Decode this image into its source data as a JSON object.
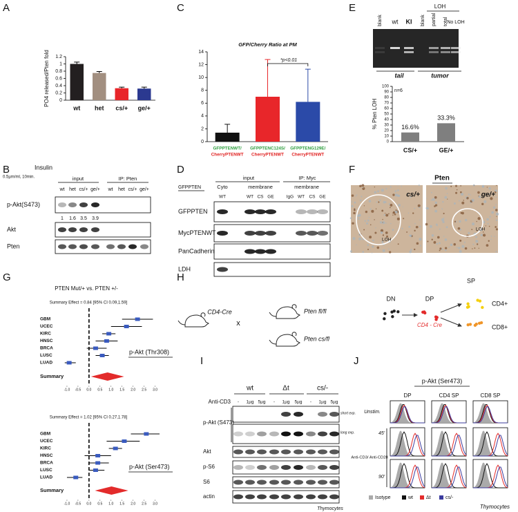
{
  "panel_labels": [
    "A",
    "B",
    "C",
    "D",
    "E",
    "F",
    "G",
    "H",
    "I",
    "J"
  ],
  "chart_data": [
    {
      "type": "bar",
      "ylabel": "PO4 released/Pten fold",
      "categories": [
        "wt",
        "het",
        "cs/+",
        "ge/+"
      ],
      "values": [
        1,
        0.75,
        0.33,
        0.32
      ],
      "errors": [
        0.05,
        0.04,
        0.03,
        0.04
      ],
      "colors": [
        "#231f20",
        "#a28f80",
        "#e8262a",
        "#2b3990"
      ],
      "ylim": [
        0,
        1.2
      ],
      "yticks": [
        0,
        0.2,
        0.4,
        0.6,
        0.8,
        1,
        1.2
      ]
    },
    {
      "type": "bar",
      "title": "GFP/Cherry Ratio at PM",
      "annotation": "*p<0.01",
      "categories": [
        "GFPPTENWT/",
        "GFPPTENC124S/",
        "GFPPTENG129E/"
      ],
      "category_sublabels": [
        "CherryPTENWT",
        "CherryPTENWT",
        "CherryPTENWT"
      ],
      "label_colors": [
        "#2e9e3e",
        "#e0201f"
      ],
      "values": [
        1.4,
        7,
        6.2
      ],
      "errors": [
        1.3,
        5.8,
        5.1
      ],
      "colors": [
        "#111111",
        "#e8262a",
        "#2b4aa8"
      ],
      "ylim": [
        0,
        14
      ],
      "yticks": [
        0,
        2,
        4,
        6,
        8,
        10,
        12,
        14
      ]
    },
    {
      "type": "bar",
      "ylabel": "% Pten LOH",
      "annotation": "n=6",
      "categories": [
        "CS/+",
        "GE/+"
      ],
      "values": [
        16.6,
        33.3
      ],
      "value_labels": [
        "16.6%",
        "33.3%"
      ],
      "colors": [
        "#7f7f7f",
        "#7f7f7f"
      ],
      "ylim": [
        0,
        100
      ],
      "yticks": [
        0,
        10,
        20,
        30,
        40,
        50,
        60,
        70,
        80,
        90,
        100
      ]
    },
    {
      "type": "forest",
      "subtitle": "Summary Effect = 0.84 [95% CI 0.09,1.59]",
      "label": "p-Akt (Thr308)",
      "categories": [
        "GBM",
        "UCEC",
        "KIRC",
        "HNSC",
        "BRCA",
        "LUSC",
        "LUAD"
      ],
      "values": [
        2.2,
        1.7,
        0.9,
        0.8,
        0.3,
        0.6,
        -0.9
      ],
      "lower": [
        1.5,
        1.0,
        0.6,
        0.3,
        -0.1,
        0.3,
        -1.1
      ],
      "upper": [
        2.9,
        2.4,
        1.2,
        1.3,
        0.8,
        0.9,
        -0.6
      ],
      "summary": {
        "label": "Summary",
        "value": 0.84,
        "lower": 0.09,
        "upper": 1.59
      },
      "color": "#3a5bbf",
      "summary_color": "#e32b2b",
      "xlim": [
        -1.5,
        3.2
      ],
      "xticks": [
        {
          "value": -1,
          "label": "-1.0"
        },
        -0.5,
        {
          "value": 0,
          "label": "0.0"
        },
        0.5,
        {
          "value": 1,
          "label": "1.0"
        },
        1.5,
        {
          "value": 2,
          "label": "2.0"
        },
        2.5,
        {
          "value": 3,
          "label": "3.0"
        }
      ]
    },
    {
      "type": "forest",
      "subtitle": "Summary Effect = 1.02 [95% CI 0.27,1.78]",
      "label": "p-Akt (Ser473)",
      "categories": [
        "GBM",
        "UCEC",
        "KIRC",
        "HNSC",
        "BRCA",
        "LUSC",
        "LUAD"
      ],
      "values": [
        2.6,
        1.6,
        1.2,
        0.4,
        0.4,
        0.3,
        -0.6
      ],
      "lower": [
        1.9,
        0.8,
        0.9,
        -0.2,
        0.0,
        0.0,
        -1.0
      ],
      "upper": [
        3.2,
        2.3,
        1.5,
        1.0,
        0.9,
        0.7,
        -0.3
      ],
      "summary": {
        "label": "Summary",
        "value": 1.02,
        "lower": 0.27,
        "upper": 1.78
      },
      "color": "#3a5bbf",
      "summary_color": "#e32b2b",
      "xlim": [
        -1.5,
        3.2
      ],
      "xticks": [
        {
          "value": -1,
          "label": "-1.0"
        },
        -0.5,
        {
          "value": 0,
          "label": "0.0"
        },
        0.5,
        {
          "value": 1,
          "label": "1.0"
        },
        1.5,
        {
          "value": 2,
          "label": "2.0"
        },
        2.5,
        {
          "value": 3,
          "label": "3.0"
        }
      ]
    }
  ],
  "panel_B": {
    "treatment": "Insulin",
    "dose": "0.5µm/ml, 10min.",
    "groups": [
      "input",
      "IP: Pten"
    ],
    "lanes": [
      "wt",
      "het",
      "cs/+",
      "ge/+",
      "wt",
      "het",
      "cs/+",
      "ge/+"
    ],
    "rows": [
      "p-Akt(S473)",
      "Akt",
      "Pten"
    ],
    "quantification": [
      1,
      1.6,
      3.5,
      3.9
    ]
  },
  "panel_D": {
    "construct": "GFPPTEN",
    "groups": [
      "input",
      "IP: Myc"
    ],
    "fractions": [
      "Cyto",
      "membrane",
      "membrane"
    ],
    "lanes": [
      "WT",
      "WT",
      "CS",
      "GE",
      "IgG",
      "WT",
      "CS",
      "GE"
    ],
    "rows": [
      "GFPPTEN",
      "MycPTENWT",
      "PanCadherin",
      "LDH"
    ]
  },
  "panel_E": {
    "lanes": [
      "blank",
      "wt",
      "KI",
      "blank",
      "partial",
      "total",
      "No LOH"
    ],
    "group": "LOH",
    "sources": [
      "tail",
      "tumor"
    ]
  },
  "panel_F": {
    "title": "Pten",
    "images": [
      {
        "genotype": "cs/+",
        "region": "LOH"
      },
      {
        "genotype": "ge/+",
        "region": "LOH"
      }
    ]
  },
  "panel_G": {
    "title": "PTEN Mut/+ vs. PTEN +/-"
  },
  "panel_H": {
    "driver": "CD4-Cre",
    "cross": "x",
    "alleles": [
      "Pten fl/fl",
      "Pten cs/fl"
    ],
    "stages": [
      "DN",
      "DP",
      "SP"
    ],
    "stage_driver": "CD4 - Cre",
    "subsets": [
      "CD4+",
      "CD8+"
    ]
  },
  "panel_I": {
    "genotypes": [
      "wt",
      "Δt",
      "cs/-"
    ],
    "treatment": "Anti-CD3",
    "doses": [
      "-",
      "1µg",
      "5µg",
      "-",
      "1µg",
      "5µg",
      "-",
      "1µg",
      "5µg"
    ],
    "rows": [
      "p-Akt (S473)",
      "Akt",
      "p-S6",
      "S6",
      "actin"
    ],
    "exposures": [
      "short exp.",
      "long exp."
    ],
    "cells": "Thymocytes"
  },
  "panel_J": {
    "title": "p-Akt (Ser473)",
    "columns": [
      "DP",
      "CD4 SP",
      "CD8 SP"
    ],
    "conditions": [
      "Unstim.",
      "45'",
      "90'"
    ],
    "stimulus": "Anti-CD3/ Anti-CD28",
    "legend": [
      {
        "name": "Isotype",
        "color": "#aaaaaa"
      },
      {
        "name": "wt",
        "color": "#111111"
      },
      {
        "name": "Δt",
        "color": "#e32b2b"
      },
      {
        "name": "cs/-",
        "color": "#3b3b9e"
      }
    ],
    "cells": "Thymocytes"
  }
}
